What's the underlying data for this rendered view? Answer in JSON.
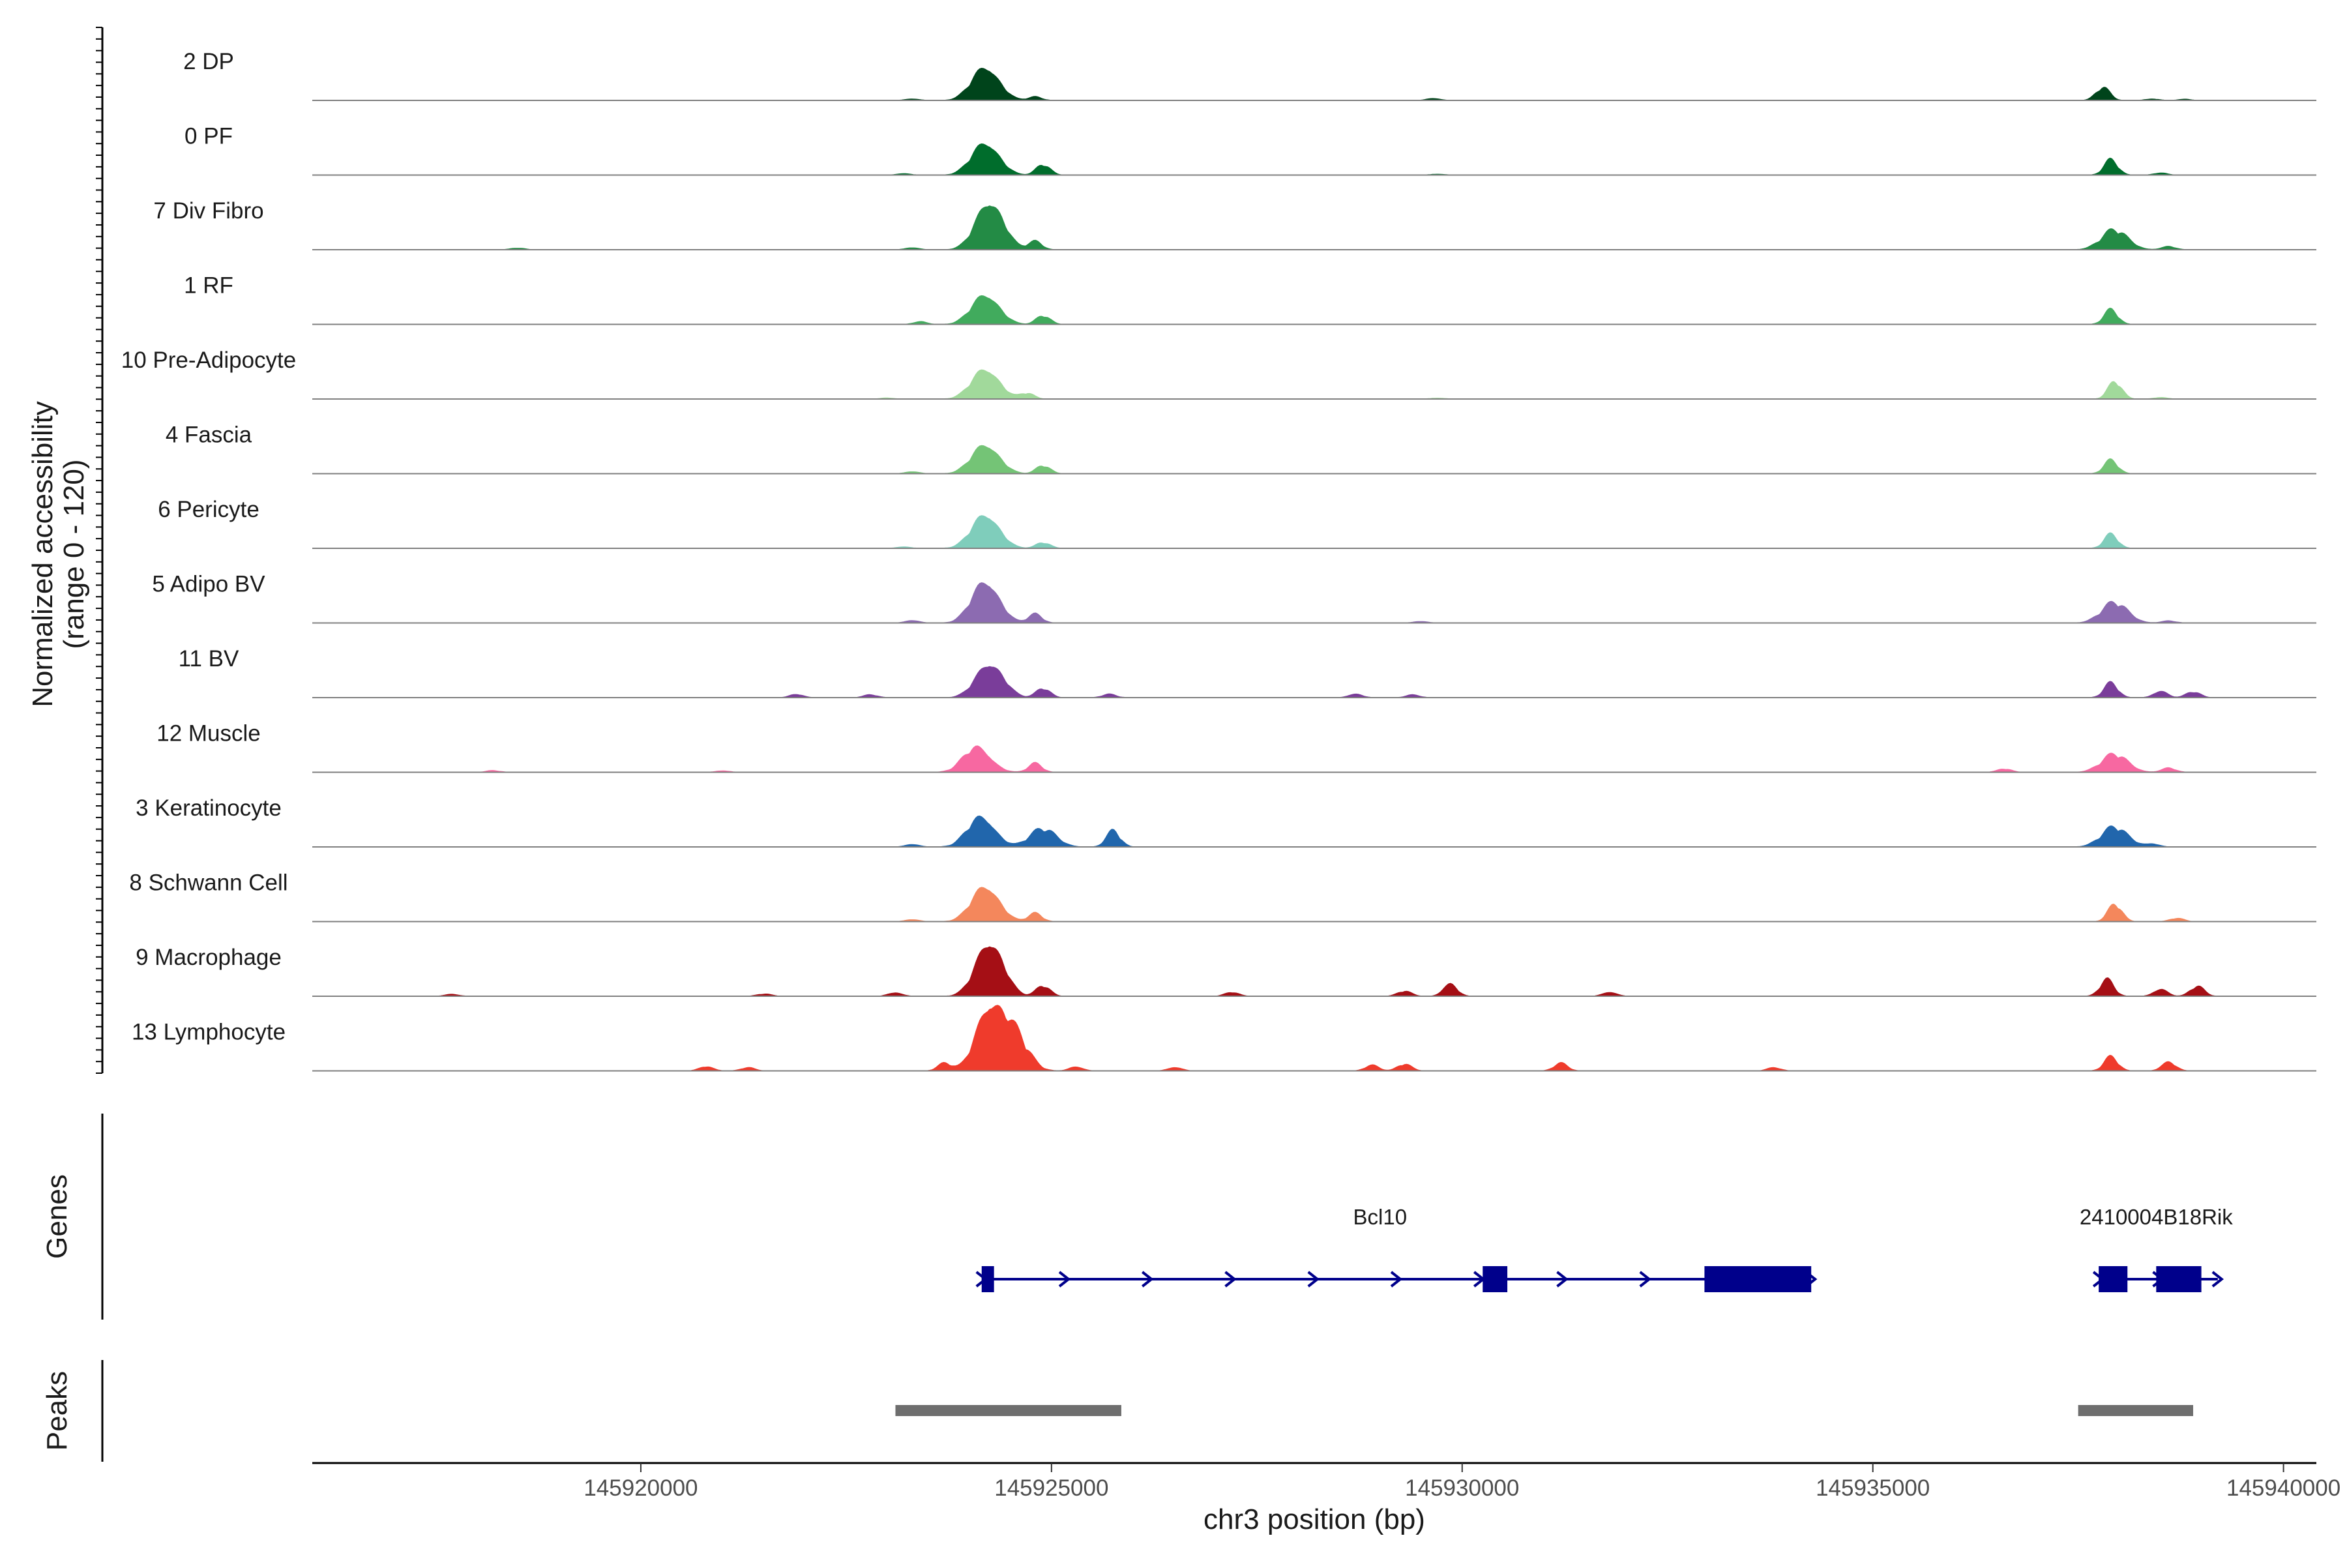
{
  "chart_data": {
    "type": "area",
    "title": "",
    "chromosome": "chr3",
    "xlabel": "chr3 position (bp)",
    "ylabel": "Normalized accessibility",
    "ylabel_range": "(range 0 - 120)",
    "ylim": [
      0,
      120
    ],
    "xlim": [
      145916000,
      145940400
    ],
    "x_ticks": [
      145920000,
      145925000,
      145930000,
      145935000,
      145940000
    ],
    "x_tick_labels": [
      "145920000",
      "145925000",
      "145930000",
      "145935000",
      "145940000"
    ],
    "series": [
      {
        "name": "2 DP",
        "color": "#00441b",
        "peaks": [
          [
            145923300,
            3
          ],
          [
            145924200,
            64
          ],
          [
            145924800,
            6
          ],
          [
            145929650,
            4
          ],
          [
            145937800,
            22
          ],
          [
            145938400,
            3
          ],
          [
            145938800,
            2
          ]
        ]
      },
      {
        "name": "0 PF",
        "color": "#006d2c",
        "peaks": [
          [
            145923200,
            3
          ],
          [
            145924200,
            62
          ],
          [
            145924900,
            18
          ],
          [
            145929700,
            2
          ],
          [
            145937900,
            26
          ],
          [
            145938500,
            4
          ]
        ]
      },
      {
        "name": "7 Div Fibro",
        "color": "#238b45",
        "peaks": [
          [
            145918500,
            3
          ],
          [
            145923300,
            4
          ],
          [
            145924250,
            93
          ],
          [
            145924800,
            14
          ],
          [
            145937950,
            34
          ],
          [
            145938600,
            6
          ]
        ]
      },
      {
        "name": "1 RF",
        "color": "#41ab5d",
        "peaks": [
          [
            145923400,
            5
          ],
          [
            145924200,
            57
          ],
          [
            145924900,
            15
          ],
          [
            145937900,
            25
          ]
        ]
      },
      {
        "name": "10 Pre-Adipocyte",
        "color": "#a1d99b",
        "peaks": [
          [
            145923000,
            2
          ],
          [
            145924200,
            58
          ],
          [
            145924700,
            10
          ],
          [
            145929700,
            2
          ],
          [
            145937950,
            30
          ],
          [
            145938500,
            3
          ]
        ]
      },
      {
        "name": "4 Fascia",
        "color": "#74c476",
        "peaks": [
          [
            145923300,
            4
          ],
          [
            145924200,
            56
          ],
          [
            145924900,
            14
          ],
          [
            145937900,
            23
          ]
        ]
      },
      {
        "name": "6 Pericyte",
        "color": "#7fcdbb",
        "peaks": [
          [
            145923200,
            3
          ],
          [
            145924200,
            65
          ],
          [
            145924900,
            10
          ],
          [
            145937900,
            24
          ]
        ]
      },
      {
        "name": "5 Adipo BV",
        "color": "#8c6bb1",
        "peaks": [
          [
            145923300,
            5
          ],
          [
            145924200,
            80
          ],
          [
            145924800,
            15
          ],
          [
            145929500,
            3
          ],
          [
            145937950,
            35
          ],
          [
            145938600,
            4
          ]
        ]
      },
      {
        "name": "11 BV",
        "color": "#7a3d9a",
        "peaks": [
          [
            145921900,
            6
          ],
          [
            145922800,
            5
          ],
          [
            145924250,
            66
          ],
          [
            145924900,
            16
          ],
          [
            145925700,
            6
          ],
          [
            145928700,
            7
          ],
          [
            145929400,
            5
          ],
          [
            145937900,
            25
          ],
          [
            145938500,
            12
          ],
          [
            145938900,
            10
          ]
        ]
      },
      {
        "name": "12 Muscle",
        "color": "#f768a1",
        "peaks": [
          [
            145918200,
            3
          ],
          [
            145921000,
            3
          ],
          [
            145924100,
            47
          ],
          [
            145924800,
            15
          ],
          [
            145936600,
            6
          ],
          [
            145937950,
            31
          ],
          [
            145938600,
            8
          ]
        ]
      },
      {
        "name": "3 Keratinocyte",
        "color": "#2166ac",
        "peaks": [
          [
            145923300,
            5
          ],
          [
            145924150,
            57
          ],
          [
            145924900,
            31
          ],
          [
            145925750,
            28
          ],
          [
            145937950,
            34
          ],
          [
            145938400,
            6
          ]
        ]
      },
      {
        "name": "8 Schwann Cell",
        "color": "#f4875c",
        "peaks": [
          [
            145923300,
            4
          ],
          [
            145924200,
            68
          ],
          [
            145924800,
            14
          ],
          [
            145937950,
            30
          ],
          [
            145938700,
            6
          ]
        ]
      },
      {
        "name": "9 Macrophage",
        "color": "#a50f15",
        "peaks": [
          [
            145917700,
            4
          ],
          [
            145921500,
            4
          ],
          [
            145923100,
            7
          ],
          [
            145924250,
            105
          ],
          [
            145924900,
            18
          ],
          [
            145927200,
            7
          ],
          [
            145929300,
            9
          ],
          [
            145929850,
            23
          ],
          [
            145931800,
            8
          ],
          [
            145937850,
            28
          ],
          [
            145938500,
            13
          ],
          [
            145938950,
            17
          ]
        ]
      },
      {
        "name": "13 Lymphocyte",
        "color": "#ef3b2c",
        "peaks": [
          [
            145920800,
            8
          ],
          [
            145921300,
            6
          ],
          [
            145923700,
            13
          ],
          [
            145924250,
            120
          ],
          [
            145924550,
            60
          ],
          [
            145925300,
            8
          ],
          [
            145926500,
            7
          ],
          [
            145928900,
            10
          ],
          [
            145929300,
            12
          ],
          [
            145931200,
            13
          ],
          [
            145933800,
            6
          ],
          [
            145937900,
            24
          ],
          [
            145938600,
            16
          ]
        ]
      }
    ],
    "genes": [
      {
        "name": "Bcl10",
        "label_pos": 145929000,
        "start": 145924150,
        "end": 145934250,
        "strand": "+",
        "exons": [
          [
            145924150,
            145924300
          ],
          [
            145930250,
            145930550
          ],
          [
            145932950,
            145934250
          ]
        ]
      },
      {
        "name": "2410004B18Rik",
        "label_pos": 145938450,
        "start": 145937750,
        "end": 145939200,
        "strand": "+",
        "exons": [
          [
            145937750,
            145938100
          ],
          [
            145938450,
            145939000
          ]
        ]
      }
    ],
    "peak_regions": [
      [
        145923100,
        145925850
      ],
      [
        145937500,
        145938900
      ]
    ],
    "panel_labels": {
      "genes": "Genes",
      "peaks": "Peaks"
    }
  }
}
